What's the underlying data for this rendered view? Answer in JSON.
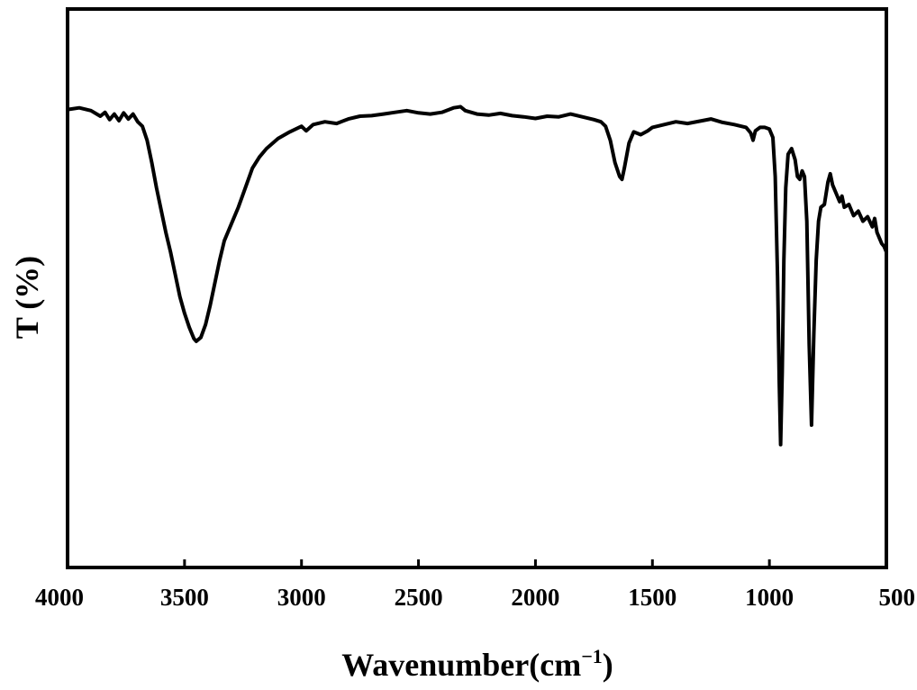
{
  "chart_data": {
    "type": "line",
    "xlabel": "Wavenumber(cm",
    "xlabel_sup": "−1",
    "xlabel_close": ")",
    "ylabel": "T (%)",
    "xlim": [
      4000,
      500
    ],
    "x_reversed": true,
    "ylim": [
      0,
      100
    ],
    "y_tick_labels_shown": false,
    "grid": false,
    "x_ticks": [
      4000,
      3500,
      3000,
      2500,
      2000,
      1500,
      1000,
      500
    ],
    "x_tick_labels": [
      "4000",
      "3500",
      "3000",
      "2500",
      "2000",
      "1500",
      "1000",
      "500"
    ],
    "series": [
      {
        "color": "#000000",
        "points": [
          [
            4000,
            82.0
          ],
          [
            3950,
            82.3
          ],
          [
            3900,
            81.8
          ],
          [
            3860,
            80.8
          ],
          [
            3840,
            81.5
          ],
          [
            3820,
            80.2
          ],
          [
            3800,
            81.2
          ],
          [
            3780,
            80.0
          ],
          [
            3760,
            81.4
          ],
          [
            3740,
            80.3
          ],
          [
            3720,
            81.2
          ],
          [
            3700,
            79.8
          ],
          [
            3680,
            79.0
          ],
          [
            3660,
            76.5
          ],
          [
            3640,
            72.5
          ],
          [
            3620,
            68.0
          ],
          [
            3600,
            64.0
          ],
          [
            3580,
            60.0
          ],
          [
            3560,
            56.5
          ],
          [
            3540,
            52.5
          ],
          [
            3520,
            48.5
          ],
          [
            3500,
            45.5
          ],
          [
            3480,
            43.0
          ],
          [
            3460,
            41.0
          ],
          [
            3450,
            40.5
          ],
          [
            3430,
            41.2
          ],
          [
            3410,
            43.5
          ],
          [
            3390,
            47.0
          ],
          [
            3370,
            51.0
          ],
          [
            3350,
            55.0
          ],
          [
            3330,
            58.5
          ],
          [
            3300,
            61.5
          ],
          [
            3270,
            64.5
          ],
          [
            3240,
            68.0
          ],
          [
            3210,
            71.5
          ],
          [
            3180,
            73.5
          ],
          [
            3150,
            75.0
          ],
          [
            3100,
            76.8
          ],
          [
            3050,
            78.0
          ],
          [
            3000,
            79.0
          ],
          [
            2980,
            78.2
          ],
          [
            2950,
            79.3
          ],
          [
            2900,
            79.8
          ],
          [
            2850,
            79.5
          ],
          [
            2800,
            80.3
          ],
          [
            2750,
            80.8
          ],
          [
            2700,
            80.9
          ],
          [
            2650,
            81.2
          ],
          [
            2600,
            81.5
          ],
          [
            2550,
            81.8
          ],
          [
            2500,
            81.4
          ],
          [
            2450,
            81.2
          ],
          [
            2400,
            81.5
          ],
          [
            2350,
            82.3
          ],
          [
            2320,
            82.5
          ],
          [
            2300,
            81.8
          ],
          [
            2250,
            81.2
          ],
          [
            2200,
            81.0
          ],
          [
            2150,
            81.3
          ],
          [
            2100,
            80.9
          ],
          [
            2050,
            80.7
          ],
          [
            2000,
            80.4
          ],
          [
            1950,
            80.8
          ],
          [
            1900,
            80.7
          ],
          [
            1850,
            81.2
          ],
          [
            1800,
            80.7
          ],
          [
            1750,
            80.2
          ],
          [
            1720,
            79.8
          ],
          [
            1700,
            79.0
          ],
          [
            1680,
            76.5
          ],
          [
            1660,
            72.5
          ],
          [
            1640,
            70.0
          ],
          [
            1630,
            69.5
          ],
          [
            1620,
            71.5
          ],
          [
            1600,
            76.0
          ],
          [
            1580,
            78.0
          ],
          [
            1550,
            77.5
          ],
          [
            1520,
            78.2
          ],
          [
            1500,
            78.8
          ],
          [
            1450,
            79.3
          ],
          [
            1400,
            79.8
          ],
          [
            1350,
            79.5
          ],
          [
            1300,
            79.9
          ],
          [
            1250,
            80.3
          ],
          [
            1200,
            79.7
          ],
          [
            1150,
            79.3
          ],
          [
            1100,
            78.8
          ],
          [
            1080,
            77.8
          ],
          [
            1070,
            76.5
          ],
          [
            1060,
            78.2
          ],
          [
            1040,
            78.8
          ],
          [
            1020,
            78.8
          ],
          [
            1000,
            78.5
          ],
          [
            985,
            77.0
          ],
          [
            975,
            70.0
          ],
          [
            965,
            52.0
          ],
          [
            958,
            33.0
          ],
          [
            952,
            22.0
          ],
          [
            945,
            35.0
          ],
          [
            938,
            55.0
          ],
          [
            930,
            68.0
          ],
          [
            920,
            74.0
          ],
          [
            905,
            75.0
          ],
          [
            890,
            73.0
          ],
          [
            880,
            70.0
          ],
          [
            870,
            69.5
          ],
          [
            860,
            71.0
          ],
          [
            850,
            70.0
          ],
          [
            840,
            62.0
          ],
          [
            830,
            40.0
          ],
          [
            820,
            25.5
          ],
          [
            810,
            42.0
          ],
          [
            800,
            55.0
          ],
          [
            790,
            62.0
          ],
          [
            780,
            64.5
          ],
          [
            765,
            65.0
          ],
          [
            750,
            69.0
          ],
          [
            740,
            70.5
          ],
          [
            730,
            68.5
          ],
          [
            720,
            67.5
          ],
          [
            700,
            65.5
          ],
          [
            690,
            66.5
          ],
          [
            680,
            64.5
          ],
          [
            660,
            65.0
          ],
          [
            640,
            63.0
          ],
          [
            620,
            63.8
          ],
          [
            600,
            62.0
          ],
          [
            580,
            62.8
          ],
          [
            560,
            61.0
          ],
          [
            550,
            62.5
          ],
          [
            540,
            60.0
          ],
          [
            530,
            59.0
          ],
          [
            520,
            58.0
          ],
          [
            510,
            57.5
          ],
          [
            500,
            56.5
          ]
        ]
      }
    ]
  }
}
